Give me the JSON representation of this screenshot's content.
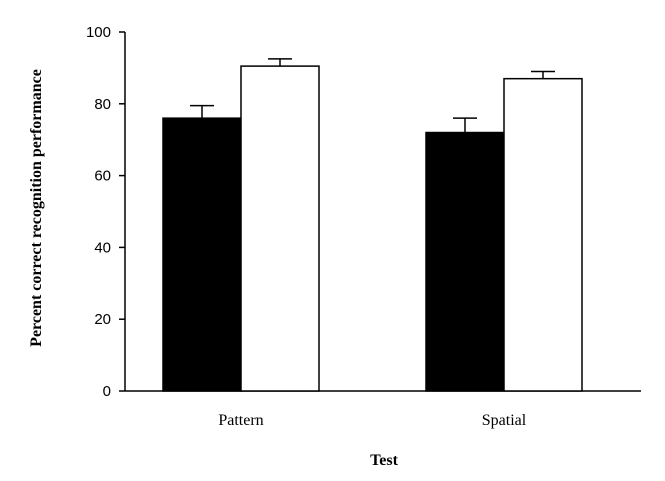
{
  "chart_data": {
    "type": "bar",
    "title": "",
    "xlabel": "Test",
    "ylabel": "Percent correct recognition performance",
    "categories": [
      "Pattern",
      "Spatial"
    ],
    "ylim": [
      0,
      100
    ],
    "yticks": [
      0,
      20,
      40,
      60,
      80,
      100
    ],
    "legend": "none",
    "grid": false,
    "series": [
      {
        "values": [
          76,
          72
        ],
        "errors": [
          3.5,
          4
        ],
        "color": "#000000"
      },
      {
        "values": [
          90.5,
          87
        ],
        "errors": [
          2,
          2
        ],
        "color": "#ffffff"
      }
    ]
  }
}
